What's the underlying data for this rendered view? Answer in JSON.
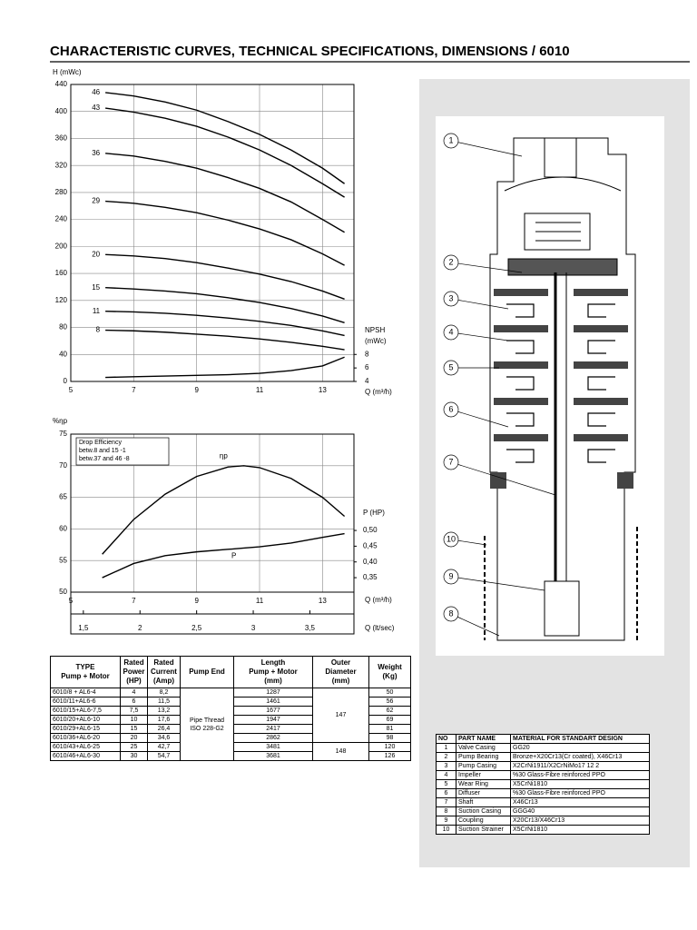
{
  "title": "CHARACTERISTIC CURVES, TECHNICAL SPECIFICATIONS, DIMENSIONS / 6010",
  "chart_data": [
    {
      "type": "line",
      "ylabel": "H (mWc)",
      "xlabel": "Q (m³/h)",
      "y2label": [
        "NPSH",
        "(mWc)"
      ],
      "xlim": [
        5,
        14
      ],
      "xticks": [
        5,
        7,
        9,
        11,
        13
      ],
      "ylim": [
        0,
        440
      ],
      "yticks": [
        0,
        40,
        80,
        120,
        160,
        200,
        240,
        280,
        320,
        360,
        400,
        440
      ],
      "y2lim": [
        4,
        48
      ],
      "y2ticks": [
        4,
        6,
        8
      ],
      "grid": true,
      "x": [
        6.1,
        7,
        8,
        9,
        10,
        11,
        12,
        13,
        13.7
      ],
      "series": [
        {
          "name": "46",
          "color": "#000000",
          "values": [
            428,
            423,
            414,
            402,
            385,
            366,
            343,
            316,
            293
          ]
        },
        {
          "name": "43",
          "color": "#000000",
          "values": [
            405,
            399,
            390,
            378,
            362,
            343,
            320,
            293,
            273
          ]
        },
        {
          "name": "36",
          "color": "#000000",
          "values": [
            338,
            334,
            326,
            316,
            302,
            286,
            266,
            240,
            221
          ]
        },
        {
          "name": "29",
          "color": "#000000",
          "values": [
            267,
            264,
            258,
            250,
            239,
            226,
            210,
            189,
            172
          ]
        },
        {
          "name": "20",
          "color": "#000000",
          "values": [
            188,
            186,
            182,
            176,
            168,
            159,
            148,
            134,
            122
          ]
        },
        {
          "name": "15",
          "color": "#000000",
          "values": [
            139,
            137,
            134,
            130,
            124,
            117,
            108,
            97,
            87
          ]
        },
        {
          "name": "11",
          "color": "#000000",
          "values": [
            104,
            103,
            101,
            98,
            94,
            89,
            83,
            75,
            68
          ]
        },
        {
          "name": "8",
          "color": "#000000",
          "values": [
            76,
            75,
            73,
            70,
            67,
            63,
            58,
            52,
            47
          ]
        },
        {
          "color": "#000000",
          "axis": "y2",
          "values": [
            4.6,
            4.7,
            4.8,
            4.9,
            5.0,
            5.2,
            5.6,
            6.3,
            7.6
          ]
        }
      ]
    },
    {
      "type": "line",
      "ylabel": "%ηp",
      "xlabel": "Q (m³/h)",
      "y2label": [
        "P (HP)"
      ],
      "x2label": "Q (lt/sec)",
      "xlim": [
        5,
        14
      ],
      "xticks": [
        5,
        7,
        9,
        11,
        13
      ],
      "ylim": [
        50,
        75
      ],
      "yticks": [
        50,
        55,
        60,
        65,
        70,
        75
      ],
      "y2lim": [
        0.304,
        0.806
      ],
      "y2ticks": [
        {
          "value": 0.35,
          "label": "0,35"
        },
        {
          "value": 0.4,
          "label": "0,40"
        },
        {
          "value": 0.45,
          "label": "0,45"
        },
        {
          "value": 0.5,
          "label": "0,50"
        }
      ],
      "x2lim": [
        1.389,
        3.889
      ],
      "x2ticks": [
        {
          "value": 1.5,
          "label": "1,5"
        },
        2,
        {
          "value": 2.5,
          "label": "2,5"
        },
        3,
        {
          "value": 3.5,
          "label": "3,5"
        }
      ],
      "note": [
        "Drop Efficiency",
        "betw.8 and 15   -1",
        "betw.37 and 46  -8"
      ],
      "grid": true,
      "x": [
        6,
        7,
        8,
        9,
        10,
        10.5,
        11,
        12,
        13,
        13.7
      ],
      "series": [
        {
          "name": "ηp",
          "color": "#000000",
          "values": [
            56,
            61.5,
            65.5,
            68.3,
            69.8,
            70,
            69.7,
            68,
            65,
            62
          ]
        },
        {
          "name": "P",
          "color": "#000000",
          "axis": "y2",
          "values": [
            0.35,
            0.395,
            0.42,
            0.432,
            0.44,
            0.444,
            0.448,
            0.46,
            0.478,
            0.49
          ]
        }
      ]
    }
  ],
  "specs": {
    "header": [
      [
        "TYPE",
        "Pump + Motor"
      ],
      [
        "Rated",
        "Power",
        "(HP)"
      ],
      [
        "Rated",
        "Current",
        "(Amp)"
      ],
      [
        "Pump End"
      ],
      [
        "Length",
        "Pump + Motor",
        "(mm)"
      ],
      [
        "Outer",
        "Diameter",
        "(mm)"
      ],
      [
        "Weight",
        "(Kg)"
      ]
    ],
    "rows": [
      [
        "6010/8 + AL6-4",
        "4",
        "8,2",
        "1287",
        "50"
      ],
      [
        "6010/11+AL6-6",
        "6",
        "11,5",
        "1461",
        "56"
      ],
      [
        "6010/15+AL6-7,5",
        "7,5",
        "13,2",
        "1677",
        "62"
      ],
      [
        "6010/20+AL6-10",
        "10",
        "17,6",
        "1947",
        "69"
      ],
      [
        "6010/29+AL6-15",
        "15",
        "26,4",
        "2417",
        "81"
      ],
      [
        "6010/36+AL6-20",
        "20",
        "34,6",
        "2862",
        "98"
      ],
      [
        "6010/43+AL6-25",
        "25",
        "42,7",
        "3481",
        "120"
      ],
      [
        "6010/46+AL6-30",
        "30",
        "54,7",
        "3681",
        "126"
      ]
    ],
    "pump_end": [
      "Pipe Thread",
      "ISO 228-G2"
    ],
    "outer_diameter": [
      "147",
      "148"
    ]
  },
  "parts": {
    "header": [
      "NO",
      "PART NAME",
      "MATERIAL FOR STANDART DESIGN"
    ],
    "rows": [
      [
        "1",
        "Valve Casing",
        "GG20"
      ],
      [
        "2",
        "Pump Bearing",
        "Bronze+X20Cr13(Cr coated), X46Cr13"
      ],
      [
        "3",
        "Pump Casing",
        "X2CrNi1911/X2CrNiMo17 12 2"
      ],
      [
        "4",
        "Impeller",
        "%30 Glass-Fibre reinforced PPO"
      ],
      [
        "5",
        "Wear Ring",
        "X5CrNi1810"
      ],
      [
        "6",
        "Diffuser",
        "%30 Glass-Fibre reinforced PPO"
      ],
      [
        "7",
        "Shaft",
        "X46Cr13"
      ],
      [
        "8",
        "Suction Casing",
        "GGG40"
      ],
      [
        "9",
        "Coupling",
        "X20Cr13/X46Cr13"
      ],
      [
        "10",
        "Suction Strainer",
        "X5CrNi1810"
      ]
    ]
  },
  "diagram": {
    "callouts": [
      "1",
      "2",
      "3",
      "4",
      "5",
      "6",
      "7",
      "10",
      "9",
      "8"
    ]
  }
}
